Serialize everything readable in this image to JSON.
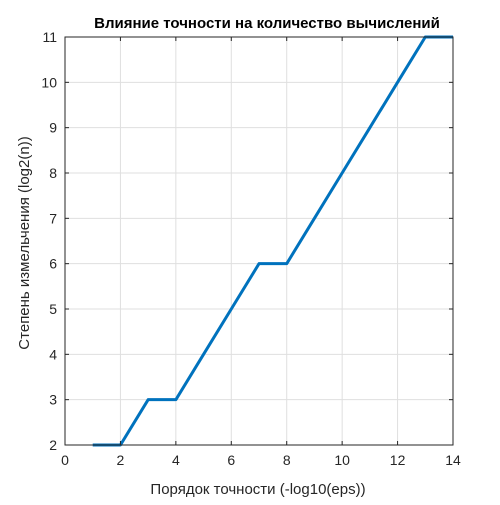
{
  "chart_data": {
    "type": "line",
    "title": "Влияние точности на количество вычислений",
    "xlabel": "Порядок точности (-log10(eps))",
    "ylabel": "Степень измельчения (log2(n))",
    "xlim": [
      0,
      14
    ],
    "ylim": [
      2,
      11
    ],
    "xticks": [
      0,
      2,
      4,
      6,
      8,
      10,
      12,
      14
    ],
    "yticks": [
      2,
      3,
      4,
      5,
      6,
      7,
      8,
      9,
      10,
      11
    ],
    "grid": true,
    "legend": "none",
    "series": [
      {
        "color": "#0072BD",
        "x": [
          1,
          2,
          3,
          4,
          5,
          6,
          7,
          8,
          9,
          10,
          11,
          12,
          13,
          14
        ],
        "y": [
          2,
          2,
          3,
          3,
          4,
          5,
          6,
          6,
          7,
          8,
          9,
          10,
          11,
          11
        ]
      }
    ]
  }
}
